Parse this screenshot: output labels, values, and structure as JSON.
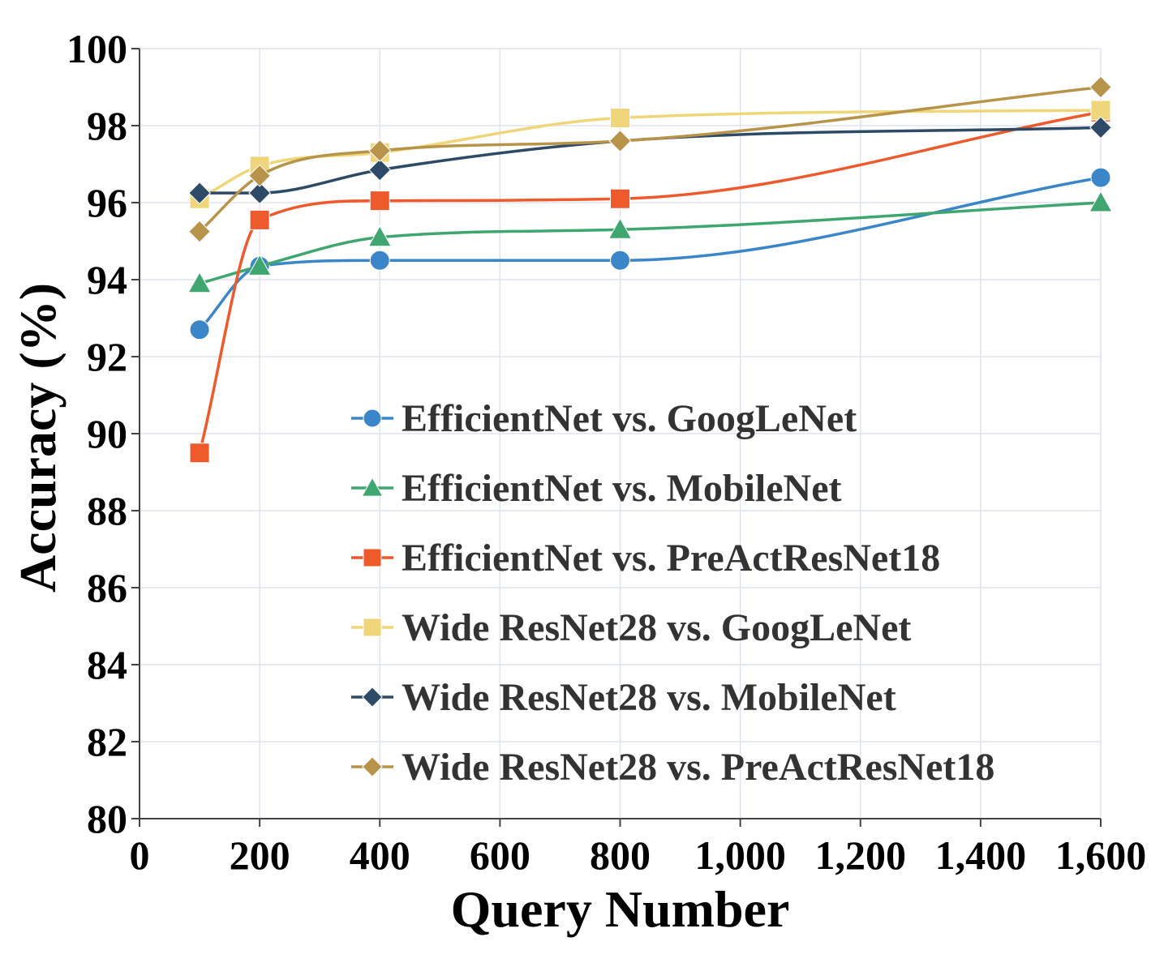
{
  "chart_data": {
    "type": "line",
    "title": "",
    "xlabel": "Query Number",
    "ylabel": "Accuracy (%)",
    "xlim": [
      0,
      1600
    ],
    "ylim": [
      80,
      100
    ],
    "x_ticks": [
      0,
      200,
      400,
      600,
      800,
      1000,
      1200,
      1400,
      1600
    ],
    "x_tick_labels": [
      "0",
      "200",
      "400",
      "600",
      "800",
      "1,000",
      "1,200",
      "1,400",
      "1,600"
    ],
    "y_ticks": [
      80,
      82,
      84,
      86,
      88,
      90,
      92,
      94,
      96,
      98,
      100
    ],
    "y_tick_labels": [
      "80",
      "82",
      "84",
      "86",
      "88",
      "90",
      "92",
      "94",
      "96",
      "98",
      "100"
    ],
    "grid": true,
    "legend_position": "lower-right (inside)",
    "x": [
      100,
      200,
      400,
      800,
      1600
    ],
    "series": [
      {
        "name": "EfficientNet vs. GoogLeNet",
        "color": "#3a86c8",
        "marker": "circle",
        "values": [
          92.7,
          94.35,
          94.5,
          94.5,
          96.65
        ]
      },
      {
        "name": "EfficientNet vs. MobileNet",
        "color": "#3fa66f",
        "marker": "triangle",
        "values": [
          93.9,
          94.35,
          95.1,
          95.3,
          96.0
        ]
      },
      {
        "name": "EfficientNet vs. PreActResNet18",
        "color": "#ee5a2c",
        "marker": "square",
        "values": [
          89.5,
          95.55,
          96.05,
          96.1,
          98.35
        ]
      },
      {
        "name": "Wide ResNet28 vs. GoogLeNet",
        "color": "#f0d67a",
        "marker": "square",
        "values": [
          96.1,
          96.95,
          97.3,
          98.2,
          98.4
        ]
      },
      {
        "name": "Wide ResNet28 vs. MobileNet",
        "color": "#2d4a66",
        "marker": "diamond",
        "values": [
          96.25,
          96.25,
          96.85,
          97.6,
          97.95
        ]
      },
      {
        "name": "Wide ResNet28 vs. PreActResNet18",
        "color": "#b8944a",
        "marker": "diamond",
        "values": [
          95.25,
          96.7,
          97.35,
          97.6,
          99.0
        ]
      }
    ]
  }
}
